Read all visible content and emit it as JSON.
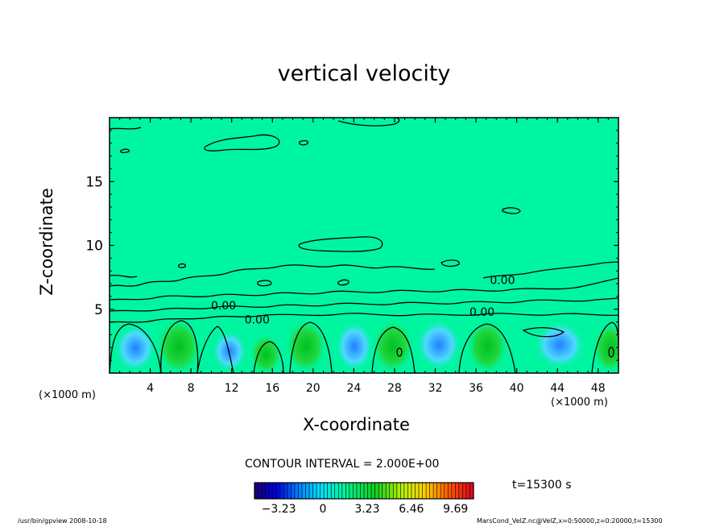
{
  "chart_data": {
    "type": "heatmap",
    "title": "vertical velocity",
    "xlabel": "X-coordinate",
    "ylabel": "Z-coordinate",
    "x_unit_label": "(×1000 m)",
    "xlim": [
      0,
      50
    ],
    "ylim": [
      0,
      20
    ],
    "x_ticks": [
      4,
      8,
      12,
      16,
      20,
      24,
      28,
      32,
      36,
      40,
      44,
      48
    ],
    "y_ticks": [
      5,
      10,
      15
    ],
    "contour_labels": [
      {
        "text": "0.00",
        "x": 11.2,
        "z": 5.3
      },
      {
        "text": "0.00",
        "x": 14.5,
        "z": 4.2
      },
      {
        "text": "0.00",
        "x": 38.6,
        "z": 7.3
      },
      {
        "text": "0.00",
        "x": 36.6,
        "z": 4.8
      }
    ],
    "contour_interval_text": "CONTOUR INTERVAL = 2.000E+00",
    "colorbar": {
      "range": [
        -5,
        11
      ],
      "tick_values": [
        -3.23,
        0,
        3.23,
        6.46,
        9.69
      ],
      "tick_labels": [
        "−3.23",
        "0",
        "3.23",
        "6.46",
        "9.69"
      ]
    },
    "time_label": "t=15300 s",
    "colors": {
      "background_field": "#00f5a0",
      "frame": "#000000"
    }
  },
  "footer": {
    "left": "/usr/bin/gpview  2008-10-18",
    "right": "MarsCond_VelZ.nc@VelZ,x=0:50000,z=0:20000,t=15300"
  }
}
